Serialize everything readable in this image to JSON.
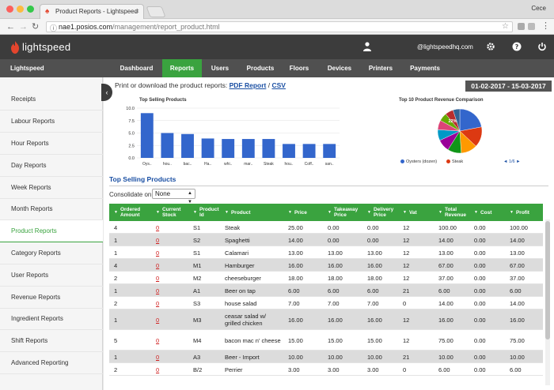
{
  "browser": {
    "tab_title": "Product Reports - Lightspeed",
    "tab_close": "×",
    "user_name": "Cece",
    "url_host": "nae1.posios.com",
    "url_path": "/management/report_product.html",
    "traffic_lights": [
      "#fc605c",
      "#fcbb40",
      "#34c84a"
    ]
  },
  "header": {
    "logo_text": "lightspeed",
    "email": "@lightspeedhq.com"
  },
  "nav": {
    "brand": "Lightspeed",
    "items": [
      "Dashboard",
      "Reports",
      "Users",
      "Products",
      "Floors",
      "Devices",
      "Printers",
      "Payments"
    ],
    "active": "Reports"
  },
  "sidebar": {
    "items": [
      "Receipts",
      "Labour Reports",
      "Hour Reports",
      "Day Reports",
      "Week Reports",
      "Month Reports",
      "Product Reports",
      "Category Reports",
      "User Reports",
      "Revenue Reports",
      "Ingredient Reports",
      "Shift Reports",
      "Advanced Reporting"
    ],
    "active": "Product Reports"
  },
  "main": {
    "print_text": "Print or download the product reports:",
    "pdf_link": "PDF Report",
    "separator": "/",
    "csv_link": "CSV",
    "date_range": "01-02-2017 - 15-03-2017",
    "section_title": "Top Selling Products",
    "consolidate_label": "Consolidate on",
    "consolidate_value": "None"
  },
  "colors": {
    "accent_green": "#3aa33f",
    "bar_blue": "#3366cc",
    "link_blue": "#1a4fa3",
    "stock_red": "#d02020"
  },
  "chart_data": [
    {
      "type": "bar",
      "title": "Top Selling Products",
      "categories": [
        "Oys..",
        "hou..",
        "bac..",
        "Ha..",
        "whi..",
        "mar..",
        "Steak",
        "hou..",
        "Coff..",
        "san.."
      ],
      "values": [
        9.0,
        5.0,
        4.8,
        3.9,
        3.8,
        3.8,
        3.8,
        2.8,
        2.8,
        2.8
      ],
      "ylim": [
        0,
        10
      ],
      "yticks": [
        "0.0",
        "2.5",
        "5.0",
        "7.5",
        "10.0"
      ],
      "grid": true
    },
    {
      "type": "pie",
      "title": "Top 10 Product Revenue Comparison",
      "slice_label": "22%",
      "values": [
        22,
        15,
        12,
        10,
        9,
        8,
        7,
        6,
        6,
        5
      ],
      "colors": [
        "#3366cc",
        "#dc3912",
        "#ff9900",
        "#109618",
        "#990099",
        "#0099c6",
        "#dd4477",
        "#66aa00",
        "#b82e2e",
        "#316395"
      ],
      "legend": [
        {
          "label": "Oysters (dozen)",
          "color": "#3366cc"
        },
        {
          "label": "Steak",
          "color": "#dc3912"
        }
      ],
      "pager": "◄ 1/6 ►"
    }
  ],
  "table": {
    "columns": [
      "Ordered Amount",
      "Current Stock",
      "Product Id",
      "Product",
      "Price",
      "Takeaway Price",
      "Delivery Price",
      "Vat",
      "Total Revenue",
      "Cost",
      "Profit"
    ],
    "rows": [
      [
        "4",
        "0",
        "S1",
        "Steak",
        "25.00",
        "0.00",
        "0.00",
        "12",
        "100.00",
        "0.00",
        "100.00"
      ],
      [
        "1",
        "0",
        "S2",
        "Spaghetti",
        "14.00",
        "0.00",
        "0.00",
        "12",
        "14.00",
        "0.00",
        "14.00"
      ],
      [
        "1",
        "0",
        "S1",
        "Calamari",
        "13.00",
        "13.00",
        "13.00",
        "12",
        "13.00",
        "0.00",
        "13.00"
      ],
      [
        "4",
        "0",
        "M1",
        "Hamburger",
        "16.00",
        "16.00",
        "16.00",
        "12",
        "67.00",
        "0.00",
        "67.00"
      ],
      [
        "2",
        "0",
        "M2",
        "cheeseburger",
        "18.00",
        "18.00",
        "18.00",
        "12",
        "37.00",
        "0.00",
        "37.00"
      ],
      [
        "1",
        "0",
        "A1",
        "Beer on tap",
        "6.00",
        "6.00",
        "6.00",
        "21",
        "6.00",
        "0.00",
        "6.00"
      ],
      [
        "2",
        "0",
        "S3",
        "house salad",
        "7.00",
        "7.00",
        "7.00",
        "0",
        "14.00",
        "0.00",
        "14.00"
      ],
      [
        "1",
        "0",
        "M3",
        "ceasar salad w/ grilled chicken",
        "16.00",
        "16.00",
        "16.00",
        "12",
        "16.00",
        "0.00",
        "16.00"
      ],
      [
        "5",
        "0",
        "M4",
        "bacon mac n' cheese",
        "15.00",
        "15.00",
        "15.00",
        "12",
        "75.00",
        "0.00",
        "75.00"
      ],
      [
        "1",
        "0",
        "A3",
        "Beer - Import",
        "10.00",
        "10.00",
        "10.00",
        "21",
        "10.00",
        "0.00",
        "10.00"
      ],
      [
        "2",
        "0",
        "B/2",
        "Perrier",
        "3.00",
        "3.00",
        "3.00",
        "0",
        "6.00",
        "0.00",
        "6.00"
      ]
    ]
  }
}
